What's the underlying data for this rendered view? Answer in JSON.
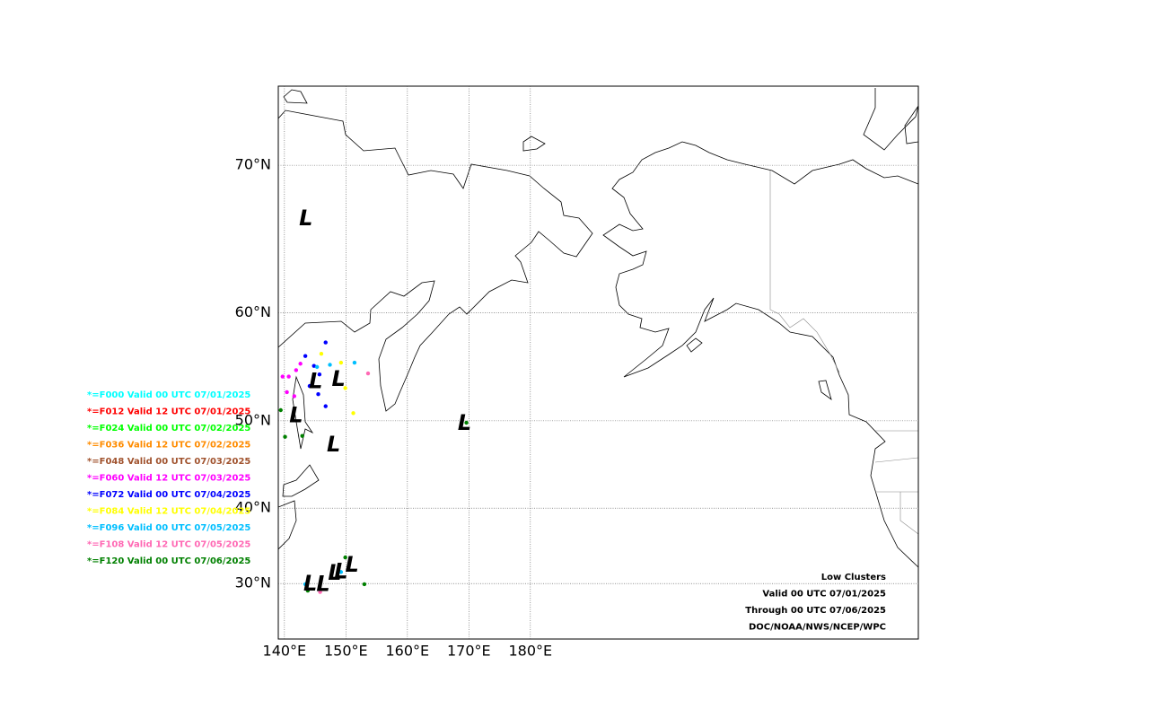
{
  "chart_data": {
    "type": "map",
    "xlim": [
      139,
      243.1
    ],
    "ylim": [
      21.9,
      73.96
    ],
    "xticks": [
      {
        "value": 140,
        "label": "140°E"
      },
      {
        "value": 150,
        "label": "150°E"
      },
      {
        "value": 160,
        "label": "160°E"
      },
      {
        "value": 170,
        "label": "170°E"
      },
      {
        "value": 180,
        "label": "180°E"
      }
    ],
    "yticks": [
      {
        "value": 30,
        "label": "30°N"
      },
      {
        "value": 40,
        "label": "40°N"
      },
      {
        "value": 50,
        "label": "50°N"
      },
      {
        "value": 60,
        "label": "60°N"
      },
      {
        "value": 70,
        "label": "70°N"
      }
    ],
    "grid": true,
    "info": [
      "Low Clusters",
      "Valid 00 UTC 07/01/2025",
      "Through 00 UTC 07/06/2025",
      "DOC/NOAA/NWS/NCEP/WPC"
    ],
    "forecasts": [
      {
        "name": "*=F000 Valid 00 UTC 07/01/2025",
        "color": "#00ffff",
        "points": []
      },
      {
        "name": "*=F012 Valid 12 UTC 07/01/2025",
        "color": "#ff0000",
        "points": []
      },
      {
        "name": "*=F024 Valid 00 UTC 07/02/2025",
        "color": "#00ff00",
        "points": []
      },
      {
        "name": "*=F036 Valid 12 UTC 07/02/2025",
        "color": "#ff8c00",
        "points": []
      },
      {
        "name": "*=F048 Valid 00 UTC 07/03/2025",
        "color": "#a0522d",
        "points": []
      },
      {
        "name": "*=F060 Valid 12 UTC 07/03/2025",
        "color": "#ff00ff",
        "points": [
          [
            139.7,
            54.4
          ],
          [
            140.7,
            54.4
          ],
          [
            141.9,
            55.0
          ],
          [
            140.4,
            52.9
          ],
          [
            141.6,
            52.5
          ],
          [
            142.6,
            55.6
          ]
        ]
      },
      {
        "name": "*=F072 Valid 00 UTC 07/04/2025",
        "color": "#0000ff",
        "points": [
          [
            143.4,
            56.3
          ],
          [
            144.8,
            55.4
          ],
          [
            145.7,
            54.6
          ],
          [
            146.7,
            57.5
          ],
          [
            145.5,
            52.7
          ],
          [
            146.7,
            51.5
          ],
          [
            144.1,
            53.5
          ]
        ]
      },
      {
        "name": "*=F084 Valid 12 UTC 07/04/2025",
        "color": "#ffff00",
        "points": [
          [
            146.0,
            56.5
          ],
          [
            149.2,
            55.7
          ],
          [
            149.9,
            53.3
          ],
          [
            151.2,
            50.8
          ]
        ]
      },
      {
        "name": "*=F096 Valid 00 UTC 07/05/2025",
        "color": "#00bfff",
        "points": [
          [
            151.4,
            55.7
          ],
          [
            147.4,
            55.5
          ],
          [
            145.3,
            55.3
          ],
          [
            143.4,
            29.9
          ],
          [
            149.2,
            31.6
          ]
        ]
      },
      {
        "name": "*=F108 Valid 12 UTC 07/05/2025",
        "color": "#ff69b4",
        "points": [
          [
            153.6,
            54.7
          ],
          [
            145.8,
            28.8
          ]
        ]
      },
      {
        "name": "*=F120 Valid 00 UTC 07/06/2025",
        "color": "#008000",
        "points": [
          [
            139.4,
            51.1
          ],
          [
            140.1,
            48.3
          ],
          [
            142.9,
            48.4
          ],
          [
            149.9,
            33.6
          ],
          [
            153.0,
            29.9
          ],
          [
            169.6,
            49.8
          ],
          [
            143.8,
            29.0
          ]
        ]
      }
    ],
    "lows": [
      {
        "label": "L",
        "lon": 143.5,
        "lat": 66.8
      },
      {
        "label": "L",
        "lon": 145.1,
        "lat": 53.9
      },
      {
        "label": "L",
        "lon": 148.8,
        "lat": 54.1
      },
      {
        "label": "L",
        "lon": 141.9,
        "lat": 50.5
      },
      {
        "label": "L",
        "lon": 148.0,
        "lat": 47.4
      },
      {
        "label": "L",
        "lon": 169.3,
        "lat": 49.7
      },
      {
        "label": "L",
        "lon": 144.2,
        "lat": 29.9
      },
      {
        "label": "L",
        "lon": 146.3,
        "lat": 29.8
      },
      {
        "label": "L",
        "lon": 148.2,
        "lat": 31.4
      },
      {
        "label": "L",
        "lon": 149.2,
        "lat": 31.6
      },
      {
        "label": "L",
        "lon": 151.0,
        "lat": 32.5
      }
    ]
  }
}
